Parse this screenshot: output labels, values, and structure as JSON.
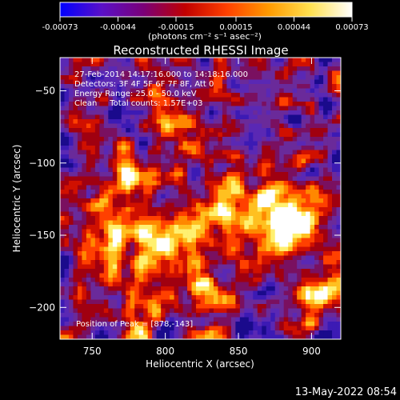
{
  "window": {
    "timestamp": "13-May-2022 08:54"
  },
  "colorbar": {
    "tick_labels": [
      "-0.00073",
      "-0.00044",
      "-0.00015",
      "0.00015",
      "0.00044",
      "0.00073"
    ],
    "tick_values": [
      -0.00073,
      -0.00044,
      -0.00015,
      0.00015,
      0.00044,
      0.00073
    ],
    "range": [
      -0.00073,
      0.00073
    ],
    "unit_label": "(photons cm⁻² s⁻¹ asec⁻²)",
    "stops": [
      "#0000ff",
      "#5a10c8",
      "#7a0078",
      "#c00000",
      "#ff4000",
      "#ff9a00",
      "#ffe050",
      "#ffffff"
    ]
  },
  "chart_data": {
    "type": "heatmap",
    "title": "Reconstructed RHESSI Image",
    "xlabel": "Heliocentric X (arcsec)",
    "ylabel": "Heliocentric Y (arcsec)",
    "xlim": [
      728,
      920
    ],
    "ylim": [
      -222,
      -27
    ],
    "x_ticks": [
      750,
      800,
      850,
      900
    ],
    "x_tick_labels": [
      "750",
      "800",
      "850",
      "900"
    ],
    "y_ticks": [
      -50,
      -100,
      -150,
      -200
    ],
    "y_tick_labels": [
      "−50",
      "−100",
      "−150",
      "−200"
    ],
    "annotations": [
      "27-Feb-2014 14:17:16.000 to 14:18:16.000",
      "Detectors: 3F 4F 5F 6F 7F 8F, Att 0",
      "Energy Range: 25.0 - 50.0 keV",
      "Clean     Total counts: 1.57E+03"
    ],
    "peak_label": "Position of Peak = [878,-143]",
    "peak": [
      878,
      -143
    ],
    "grid": false
  }
}
